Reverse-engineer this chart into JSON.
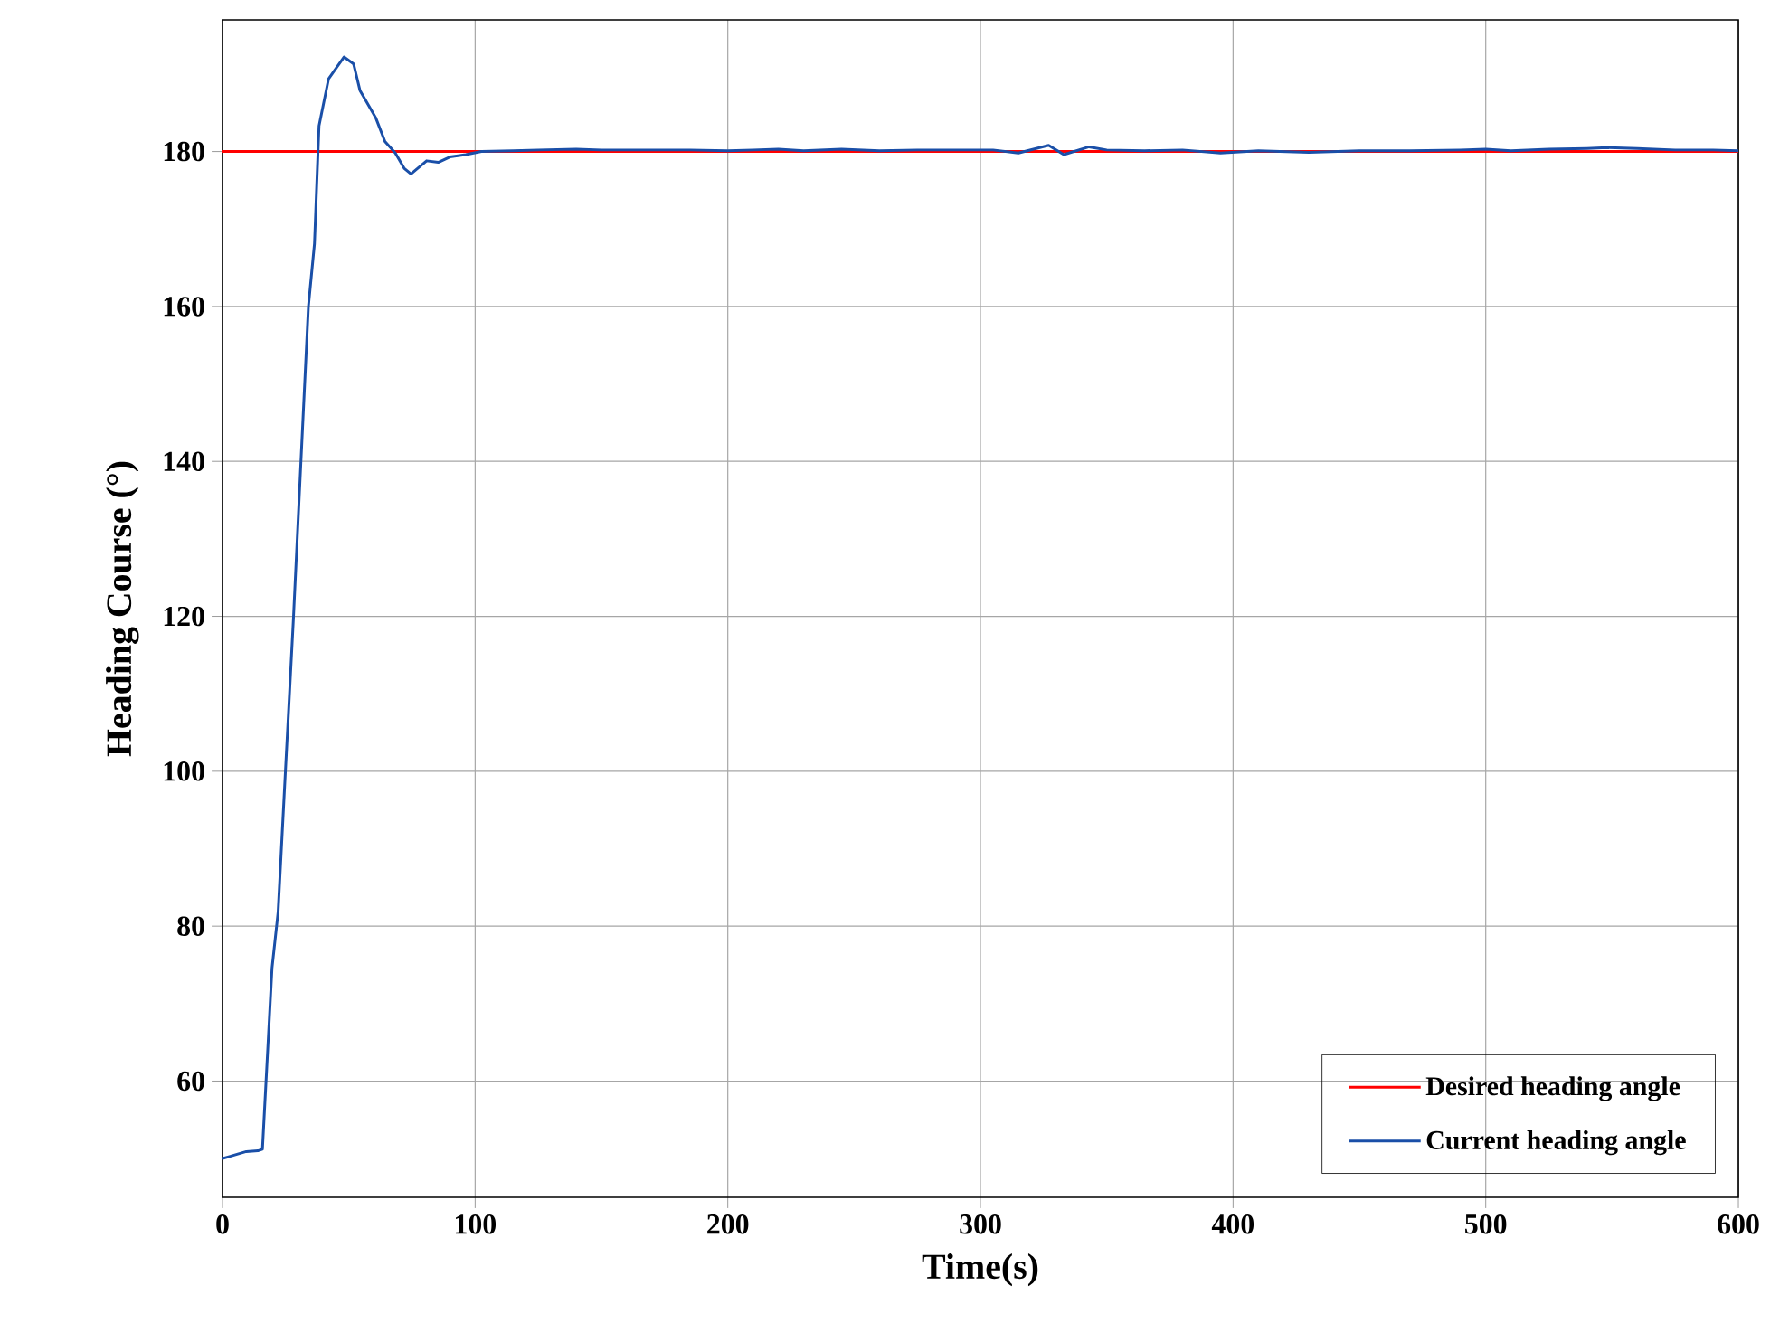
{
  "chart_data": {
    "type": "line",
    "xlabel": "Time(s)",
    "ylabel": "Heading Course (°)",
    "xlim": [
      0,
      600
    ],
    "ylim": [
      45,
      197
    ],
    "xticks": [
      0,
      100,
      200,
      300,
      400,
      500,
      600
    ],
    "yticks": [
      60,
      80,
      100,
      120,
      140,
      160,
      180
    ],
    "grid": true,
    "legend": "bottom right",
    "marker": "none",
    "line_style": "solid",
    "series": [
      {
        "name": "Desired heading angle",
        "color": "#ff0000",
        "x": [
          0,
          600
        ],
        "values": [
          180,
          180
        ]
      },
      {
        "name": "Current heading angle",
        "color": "#1a4fa8",
        "x": [
          0,
          9.4,
          14,
          15.8,
          19.6,
          22,
          24.9,
          28,
          31,
          34,
          36.4,
          38.2,
          42,
          44.4,
          48.1,
          51.9,
          54.4,
          60.6,
          64.3,
          68.4,
          72,
          74.6,
          80.8,
          85.4,
          90,
          96.3,
          102.5,
          115,
          125,
          140,
          150,
          165,
          185,
          200,
          210,
          220,
          230,
          245,
          260,
          275,
          290,
          305,
          315,
          327,
          333,
          343,
          350,
          365,
          380,
          395,
          410,
          430,
          450,
          470,
          490,
          500,
          510,
          525,
          540,
          548,
          560,
          575,
          590,
          600
        ],
        "values": [
          50.0,
          50.9,
          51,
          51.2,
          74.6,
          81.8,
          100,
          119.3,
          139.7,
          160,
          168.1,
          183.3,
          189.4,
          190.5,
          192.2,
          191.3,
          187.9,
          184.4,
          181.3,
          179.8,
          177.8,
          177.1,
          178.8,
          178.6,
          179.3,
          179.6,
          180,
          180.1,
          180.2,
          180.3,
          180.2,
          180.2,
          180.2,
          180.1,
          180.2,
          180.3,
          180.1,
          180.3,
          180.1,
          180.2,
          180.2,
          180.2,
          179.8,
          180.8,
          179.6,
          180.6,
          180.2,
          180.1,
          180.2,
          179.8,
          180.1,
          179.9,
          180.1,
          180.1,
          180.2,
          180.3,
          180.1,
          180.3,
          180.4,
          180.5,
          180.4,
          180.2,
          180.2,
          180.1
        ]
      }
    ]
  }
}
